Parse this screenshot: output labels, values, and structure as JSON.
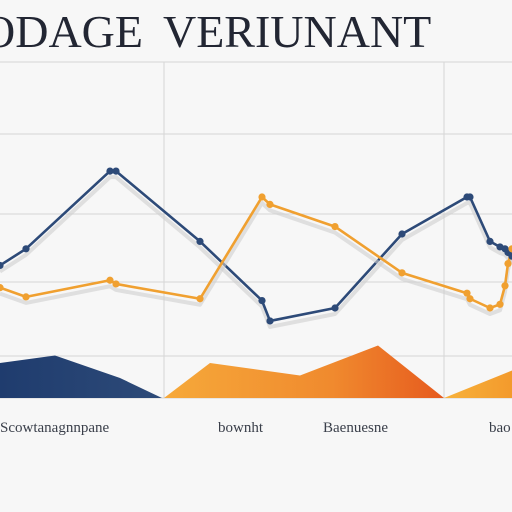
{
  "chart_data": {
    "type": "line",
    "title_parts": [
      "ODAGE",
      "VERIUNANT"
    ],
    "xlabel": "",
    "ylabel": "",
    "grid": true,
    "x": [
      0,
      1,
      2,
      3,
      4,
      5,
      6,
      7,
      8,
      9,
      10,
      11,
      12,
      13,
      14,
      15
    ],
    "ylim": [
      0,
      100
    ],
    "series": [
      {
        "color": "#2d4a78",
        "values": [
          43,
          52,
          94,
          94,
          56,
          24,
          13,
          20,
          60,
          80,
          80,
          56,
          53,
          52,
          50,
          48
        ]
      },
      {
        "color": "#f0a030",
        "values": [
          31,
          26,
          35,
          33,
          25,
          80,
          76,
          64,
          39,
          28,
          25,
          20,
          22,
          32,
          44,
          52
        ]
      }
    ],
    "areas": [
      {
        "color": "#2d4a78",
        "values": [
          14,
          17,
          8,
          0
        ]
      },
      {
        "color": "#f0a030",
        "values": [
          0,
          14,
          9,
          21,
          0
        ]
      },
      {
        "color": "#f0a030",
        "values": [
          0,
          11
        ]
      }
    ],
    "category_labels": [
      "Scowtanagnnpane",
      "bownht",
      "Baenuesne",
      "bao"
    ]
  }
}
